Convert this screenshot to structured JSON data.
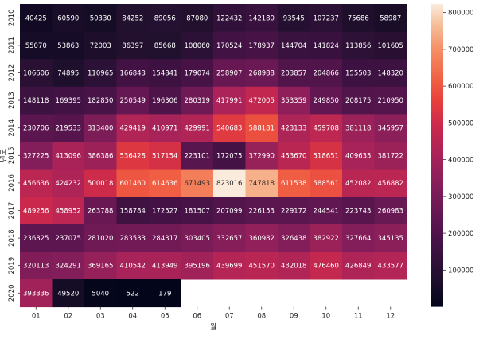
{
  "chart_data": {
    "type": "heatmap",
    "xlabel": "월",
    "ylabel": "년도",
    "x_categories": [
      "01",
      "02",
      "03",
      "04",
      "05",
      "06",
      "07",
      "08",
      "09",
      "10",
      "11",
      "12"
    ],
    "y_categories": [
      "2010",
      "2011",
      "2012",
      "2013",
      "2014",
      "2015",
      "2016",
      "2017",
      "2018",
      "2019",
      "2020"
    ],
    "values": [
      [
        40425,
        60590,
        50330,
        84252,
        89056,
        87080,
        122432,
        142180,
        93545,
        107237,
        75686,
        58987
      ],
      [
        55070,
        53863,
        72003,
        86397,
        85668,
        108060,
        170524,
        178937,
        144704,
        141824,
        113856,
        101605
      ],
      [
        106606,
        74895,
        110965,
        166843,
        154841,
        179074,
        258907,
        268988,
        203857,
        204866,
        155503,
        148320
      ],
      [
        148118,
        169395,
        182850,
        250549,
        196306,
        280319,
        417991,
        472005,
        353359,
        249850,
        208175,
        210950
      ],
      [
        230706,
        219533,
        313400,
        429419,
        410971,
        429991,
        540683,
        588181,
        423133,
        459708,
        381118,
        345957
      ],
      [
        327225,
        413096,
        386386,
        536428,
        517154,
        223101,
        172075,
        372990,
        453670,
        518651,
        409635,
        381722
      ],
      [
        456636,
        424232,
        500018,
        601460,
        614636,
        671493,
        823016,
        747818,
        611538,
        588561,
        452082,
        456882
      ],
      [
        489256,
        458952,
        263788,
        158784,
        172527,
        181507,
        207099,
        226153,
        229172,
        244541,
        223743,
        260983
      ],
      [
        236825,
        237075,
        281020,
        283533,
        284317,
        303405,
        332657,
        360982,
        326438,
        382922,
        327664,
        345135
      ],
      [
        320113,
        324291,
        369165,
        410542,
        413949,
        395196,
        439699,
        451570,
        432018,
        476460,
        426849,
        433577
      ],
      [
        393336,
        49520,
        5040,
        522,
        179,
        null,
        null,
        null,
        null,
        null,
        null,
        null
      ]
    ],
    "colorbar": {
      "min": 0,
      "max": 823016,
      "ticks": [
        100000,
        200000,
        300000,
        400000,
        500000,
        600000,
        700000,
        800000
      ],
      "tick_labels": [
        "100000",
        "200000",
        "300000",
        "400000",
        "500000",
        "600000",
        "700000",
        "800000"
      ],
      "colormap": "rocket"
    }
  }
}
